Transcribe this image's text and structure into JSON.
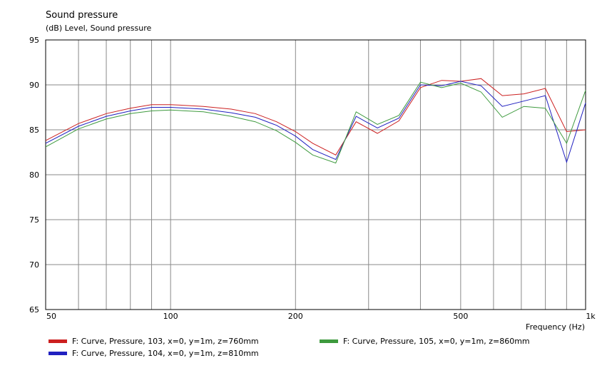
{
  "chart_data": {
    "type": "line",
    "title": "Sound pressure",
    "subtitle": "(dB)  Level, Sound pressure",
    "xlabel": "Frequency  (Hz)",
    "ylabel": "",
    "xscale": "log",
    "xlim": [
      50,
      1000
    ],
    "ylim": [
      65,
      95
    ],
    "x_tick_labels": [
      {
        "value": 50,
        "label": "50"
      },
      {
        "value": 100,
        "label": "100"
      },
      {
        "value": 200,
        "label": "200"
      },
      {
        "value": 500,
        "label": "500"
      },
      {
        "value": 1000,
        "label": "1k"
      }
    ],
    "y_ticks": [
      65,
      70,
      75,
      80,
      85,
      90,
      95
    ],
    "grid": true,
    "legend_position": "bottom",
    "x": [
      50,
      60,
      70,
      80,
      90,
      100,
      120,
      140,
      160,
      180,
      200,
      220,
      250,
      280,
      315,
      355,
      400,
      450,
      500,
      560,
      630,
      710,
      800,
      900,
      1000
    ],
    "series": [
      {
        "name": "F: Curve, Pressure, 103, x=0, y=1m, z=760mm",
        "color": "#cc2020",
        "values": [
          83.8,
          85.7,
          86.8,
          87.4,
          87.8,
          87.8,
          87.6,
          87.3,
          86.8,
          85.9,
          84.8,
          83.5,
          82.2,
          85.9,
          84.6,
          86.0,
          89.7,
          90.5,
          90.4,
          90.7,
          88.8,
          89.0,
          89.6,
          84.8,
          85.0
        ]
      },
      {
        "name": "F: Curve, Pressure, 104, x=0, y=1m, z=810mm",
        "color": "#2020c0",
        "values": [
          83.5,
          85.4,
          86.5,
          87.1,
          87.5,
          87.5,
          87.3,
          86.9,
          86.4,
          85.5,
          84.3,
          82.8,
          81.7,
          86.5,
          85.2,
          86.3,
          90.0,
          89.9,
          90.4,
          89.9,
          87.6,
          88.2,
          88.8,
          81.4,
          88.0
        ]
      },
      {
        "name": "F: Curve, Pressure, 105, x=0, y=1m, z=860mm",
        "color": "#3e9a3e",
        "values": [
          83.1,
          85.1,
          86.2,
          86.8,
          87.1,
          87.2,
          87.0,
          86.5,
          85.9,
          84.9,
          83.6,
          82.2,
          81.3,
          87.0,
          85.6,
          86.6,
          90.3,
          89.7,
          90.2,
          89.2,
          86.4,
          87.6,
          87.4,
          83.5,
          89.4
        ]
      }
    ]
  }
}
